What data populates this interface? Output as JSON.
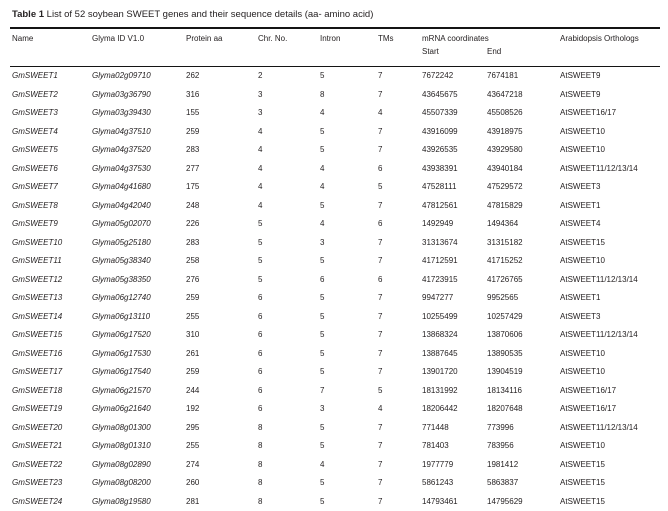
{
  "title": {
    "label": "Table 1",
    "text": "List of 52 soybean SWEET genes and their sequence details (aa- amino acid)"
  },
  "table": {
    "columns": [
      "Name",
      "Glyma ID V1.0",
      "Protein aa",
      "Chr. No.",
      "Intron",
      "TMs"
    ],
    "group_header": "mRNA coordinates",
    "sub_columns": [
      "Start",
      "End"
    ],
    "last_column": "Arabidopsis Orthologs",
    "rows": [
      {
        "name": "GmSWEET1",
        "glyma_id": "Glyma02g09710",
        "protein_aa": "262",
        "chr_no": "2",
        "intron": "5",
        "tms": "7",
        "start": "7672242",
        "end": "7674181",
        "ortholog": "AtSWEET9"
      },
      {
        "name": "GmSWEET2",
        "glyma_id": "Glyma03g36790",
        "protein_aa": "316",
        "chr_no": "3",
        "intron": "8",
        "tms": "7",
        "start": "43645675",
        "end": "43647218",
        "ortholog": "AtSWEET9"
      },
      {
        "name": "GmSWEET3",
        "glyma_id": "Glyma03g39430",
        "protein_aa": "155",
        "chr_no": "3",
        "intron": "4",
        "tms": "4",
        "start": "45507339",
        "end": "45508526",
        "ortholog": "AtSWEET16/17"
      },
      {
        "name": "GmSWEET4",
        "glyma_id": "Glyma04g37510",
        "protein_aa": "259",
        "chr_no": "4",
        "intron": "5",
        "tms": "7",
        "start": "43916099",
        "end": "43918975",
        "ortholog": "AtSWEET10"
      },
      {
        "name": "GmSWEET5",
        "glyma_id": "Glyma04g37520",
        "protein_aa": "283",
        "chr_no": "4",
        "intron": "5",
        "tms": "7",
        "start": "43926535",
        "end": "43929580",
        "ortholog": "AtSWEET10"
      },
      {
        "name": "GmSWEET6",
        "glyma_id": "Glyma04g37530",
        "protein_aa": "277",
        "chr_no": "4",
        "intron": "4",
        "tms": "6",
        "start": "43938391",
        "end": "43940184",
        "ortholog": "AtSWEET11/12/13/14"
      },
      {
        "name": "GmSWEET7",
        "glyma_id": "Glyma04g41680",
        "protein_aa": "175",
        "chr_no": "4",
        "intron": "4",
        "tms": "5",
        "start": "47528111",
        "end": "47529572",
        "ortholog": "AtSWEET3"
      },
      {
        "name": "GmSWEET8",
        "glyma_id": "Glyma04g42040",
        "protein_aa": "248",
        "chr_no": "4",
        "intron": "5",
        "tms": "7",
        "start": "47812561",
        "end": "47815829",
        "ortholog": "AtSWEET1"
      },
      {
        "name": "GmSWEET9",
        "glyma_id": "Glyma05g02070",
        "protein_aa": "226",
        "chr_no": "5",
        "intron": "4",
        "tms": "6",
        "start": "1492949",
        "end": "1494364",
        "ortholog": "AtSWEET4"
      },
      {
        "name": "GmSWEET10",
        "glyma_id": "Glyma05g25180",
        "protein_aa": "283",
        "chr_no": "5",
        "intron": "3",
        "tms": "7",
        "start": "31313674",
        "end": "31315182",
        "ortholog": "AtSWEET15"
      },
      {
        "name": "GmSWEET11",
        "glyma_id": "Glyma05g38340",
        "protein_aa": "258",
        "chr_no": "5",
        "intron": "5",
        "tms": "7",
        "start": "41712591",
        "end": "41715252",
        "ortholog": "AtSWEET10"
      },
      {
        "name": "GmSWEET12",
        "glyma_id": "Glyma05g38350",
        "protein_aa": "276",
        "chr_no": "5",
        "intron": "6",
        "tms": "6",
        "start": "41723915",
        "end": "41726765",
        "ortholog": "AtSWEET11/12/13/14"
      },
      {
        "name": "GmSWEET13",
        "glyma_id": "Glyma06g12740",
        "protein_aa": "259",
        "chr_no": "6",
        "intron": "5",
        "tms": "7",
        "start": "9947277",
        "end": "9952565",
        "ortholog": "AtSWEET1"
      },
      {
        "name": "GmSWEET14",
        "glyma_id": "Glyma06g13110",
        "protein_aa": "255",
        "chr_no": "6",
        "intron": "5",
        "tms": "7",
        "start": "10255499",
        "end": "10257429",
        "ortholog": "AtSWEET3"
      },
      {
        "name": "GmSWEET15",
        "glyma_id": "Glyma06g17520",
        "protein_aa": "310",
        "chr_no": "6",
        "intron": "5",
        "tms": "7",
        "start": "13868324",
        "end": "13870606",
        "ortholog": "AtSWEET11/12/13/14"
      },
      {
        "name": "GmSWEET16",
        "glyma_id": "Glyma06g17530",
        "protein_aa": "261",
        "chr_no": "6",
        "intron": "5",
        "tms": "7",
        "start": "13887645",
        "end": "13890535",
        "ortholog": "AtSWEET10"
      },
      {
        "name": "GmSWEET17",
        "glyma_id": "Glyma06g17540",
        "protein_aa": "259",
        "chr_no": "6",
        "intron": "5",
        "tms": "7",
        "start": "13901720",
        "end": "13904519",
        "ortholog": "AtSWEET10"
      },
      {
        "name": "GmSWEET18",
        "glyma_id": "Glyma06g21570",
        "protein_aa": "244",
        "chr_no": "6",
        "intron": "7",
        "tms": "5",
        "start": "18131992",
        "end": "18134116",
        "ortholog": "AtSWEET16/17"
      },
      {
        "name": "GmSWEET19",
        "glyma_id": "Glyma06g21640",
        "protein_aa": "192",
        "chr_no": "6",
        "intron": "3",
        "tms": "4",
        "start": "18206442",
        "end": "18207648",
        "ortholog": "AtSWEET16/17"
      },
      {
        "name": "GmSWEET20",
        "glyma_id": "Glyma08g01300",
        "protein_aa": "295",
        "chr_no": "8",
        "intron": "5",
        "tms": "7",
        "start": "771448",
        "end": "773996",
        "ortholog": "AtSWEET11/12/13/14"
      },
      {
        "name": "GmSWEET21",
        "glyma_id": "Glyma08g01310",
        "protein_aa": "255",
        "chr_no": "8",
        "intron": "5",
        "tms": "7",
        "start": "781403",
        "end": "783956",
        "ortholog": "AtSWEET10"
      },
      {
        "name": "GmSWEET22",
        "glyma_id": "Glyma08g02890",
        "protein_aa": "274",
        "chr_no": "8",
        "intron": "4",
        "tms": "7",
        "start": "1977779",
        "end": "1981412",
        "ortholog": "AtSWEET15"
      },
      {
        "name": "GmSWEET23",
        "glyma_id": "Glyma08g08200",
        "protein_aa": "260",
        "chr_no": "8",
        "intron": "5",
        "tms": "7",
        "start": "5861243",
        "end": "5863837",
        "ortholog": "AtSWEET15"
      },
      {
        "name": "GmSWEET24",
        "glyma_id": "Glyma08g19580",
        "protein_aa": "281",
        "chr_no": "8",
        "intron": "5",
        "tms": "7",
        "start": "14793461",
        "end": "14795629",
        "ortholog": "AtSWEET15"
      }
    ]
  }
}
